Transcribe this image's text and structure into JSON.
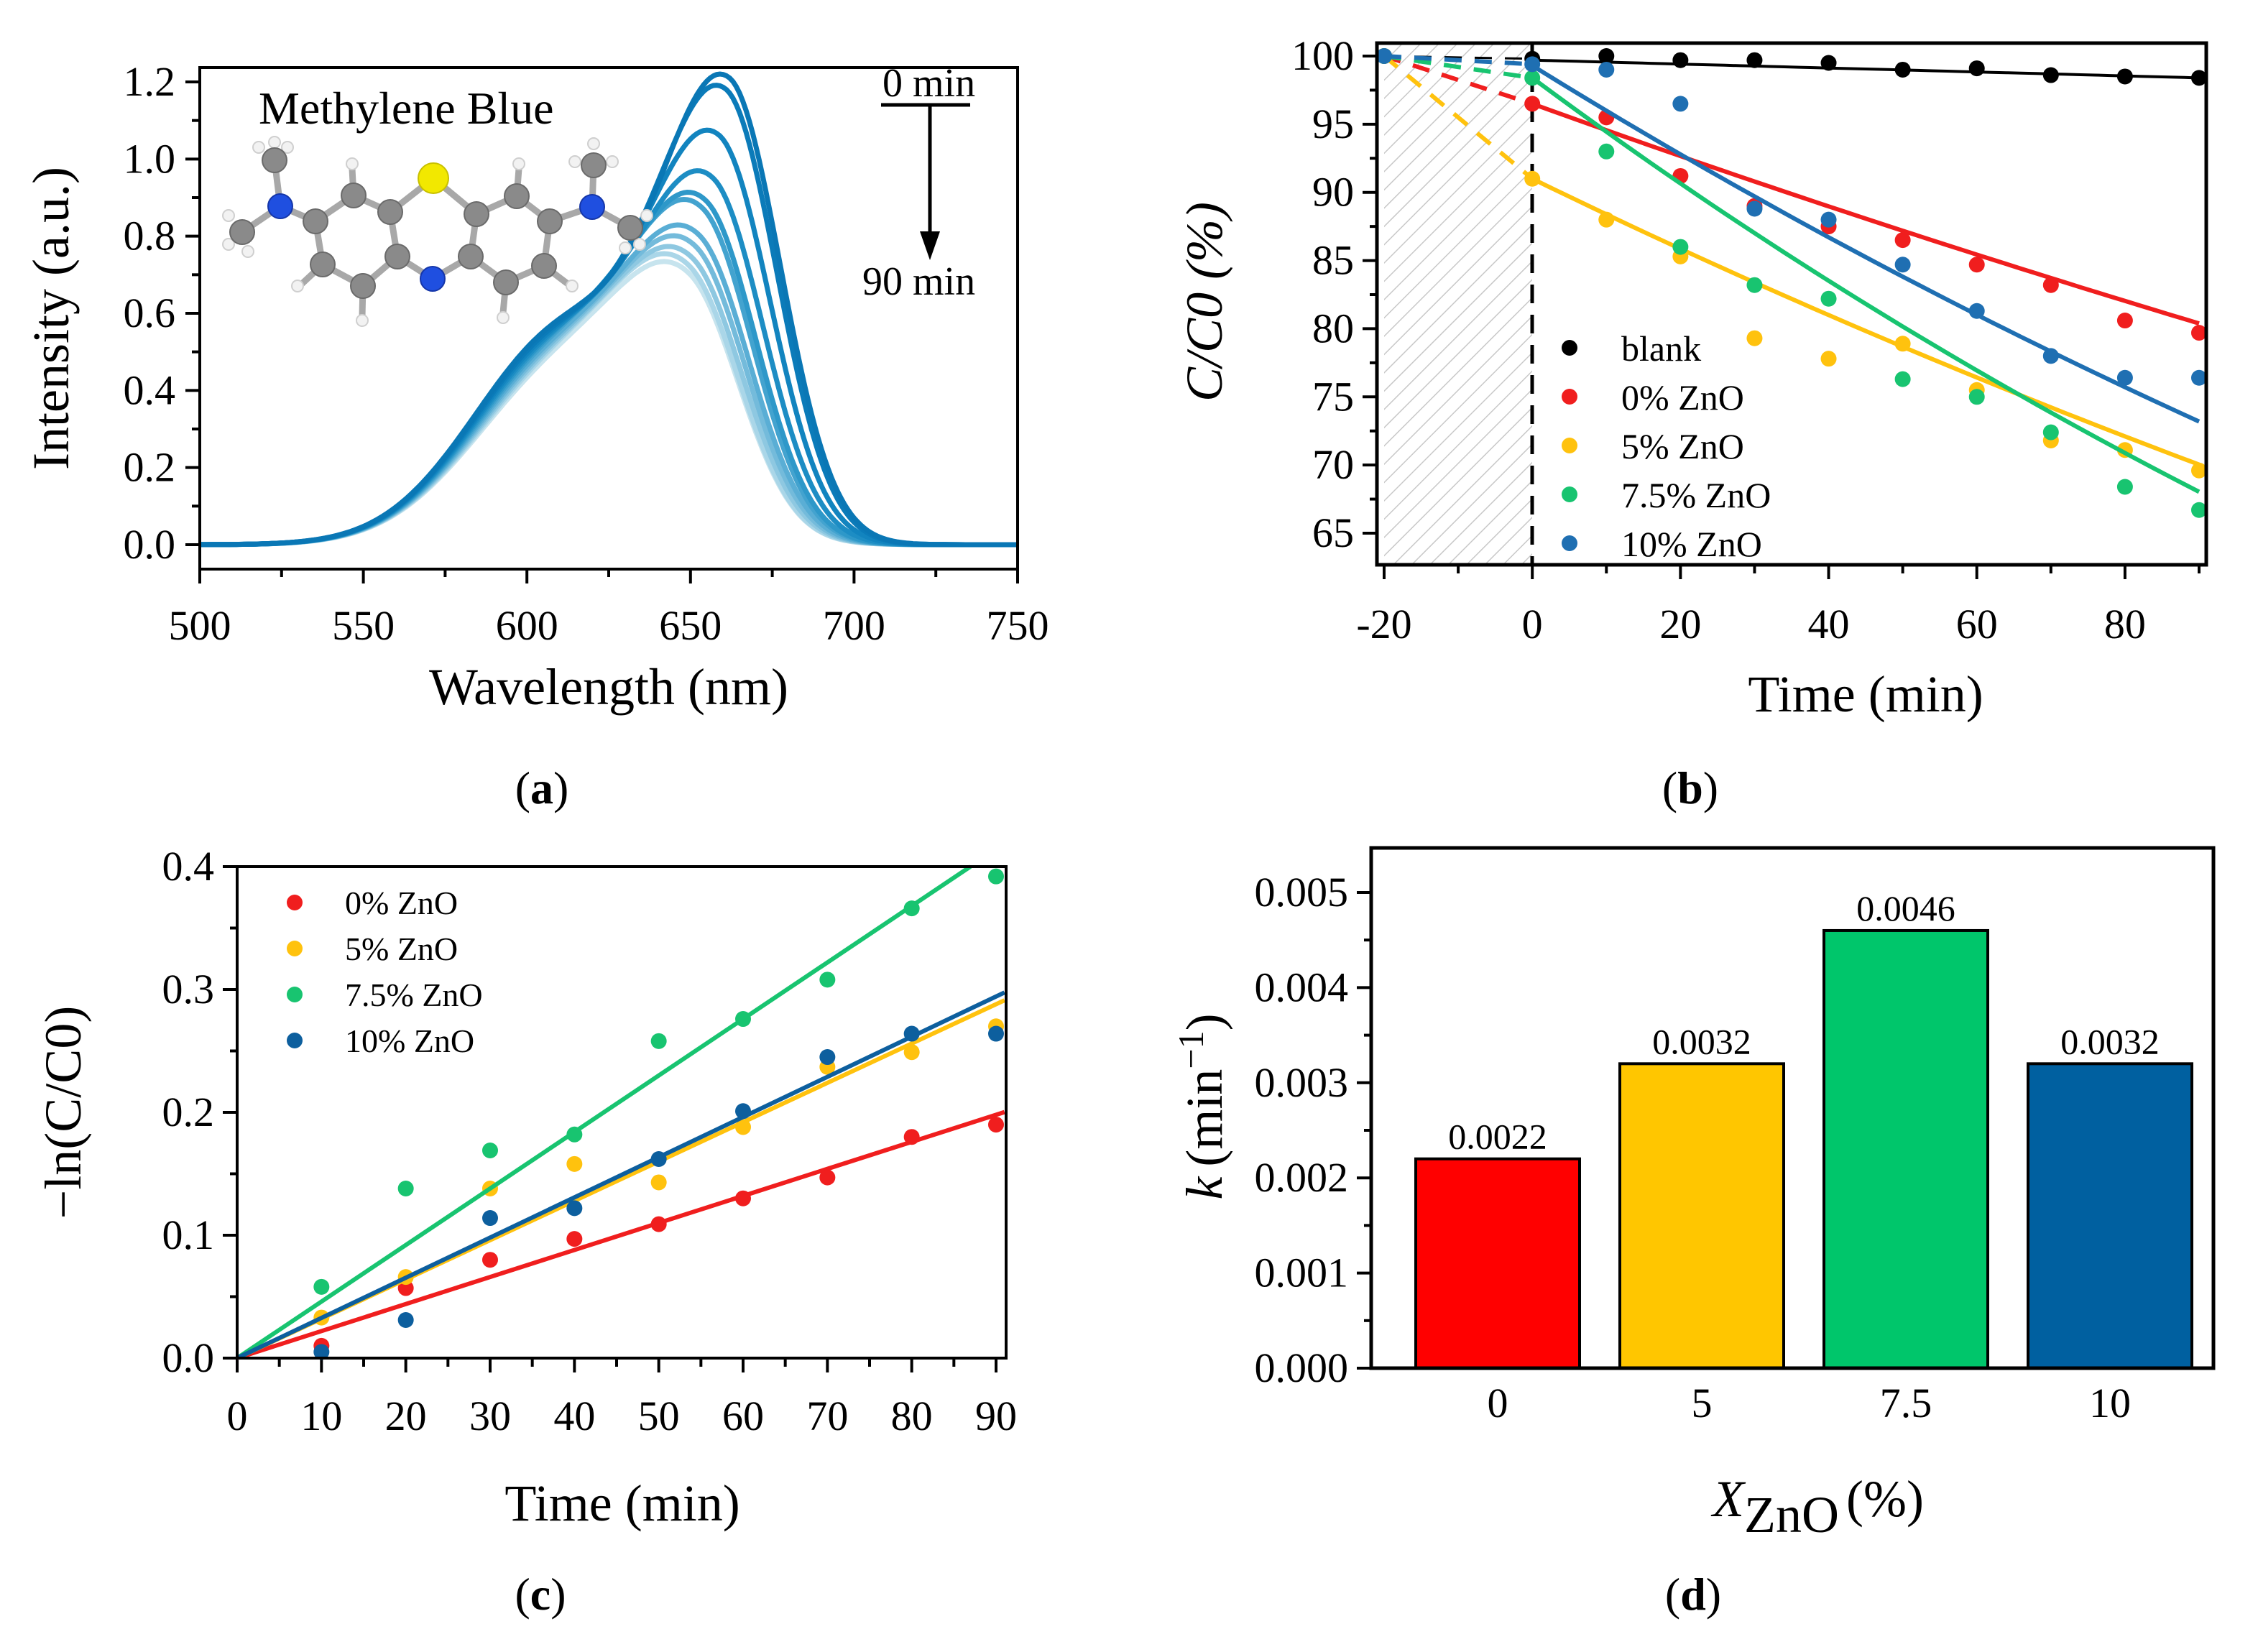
{
  "captions": {
    "a": "a",
    "b": "b",
    "c": "c",
    "d": "d"
  },
  "chart_data": [
    {
      "id": "a",
      "type": "line",
      "title": "",
      "xlabel": "Wavelength (nm)",
      "ylabel": "Intensity (a.u.)",
      "xlim": [
        500,
        750
      ],
      "ylim": [
        0,
        1.25
      ],
      "xticks": [
        "500",
        "550",
        "600",
        "650",
        "700",
        "750"
      ],
      "yticks": [
        "0.0",
        "0.2",
        "0.4",
        "0.6",
        "0.8",
        "1.0",
        "1.2"
      ],
      "annotations": {
        "molecule": "Methylene Blue",
        "start": "0 min",
        "end": "90 min"
      },
      "series": [
        {
          "peak_nm": 662,
          "peak": 1.21,
          "shoulder": 0.55,
          "color": "#0a77b5"
        },
        {
          "peak_nm": 661,
          "peak": 1.18,
          "shoulder": 0.54,
          "color": "#0b7bb9"
        },
        {
          "peak_nm": 659,
          "peak": 1.06,
          "shoulder": 0.53,
          "color": "#1284bf"
        },
        {
          "peak_nm": 657,
          "peak": 0.95,
          "shoulder": 0.52,
          "color": "#1d8dc4"
        },
        {
          "peak_nm": 655,
          "peak": 0.89,
          "shoulder": 0.51,
          "color": "#2e98c9"
        },
        {
          "peak_nm": 654,
          "peak": 0.87,
          "shoulder": 0.5,
          "color": "#43a3cf"
        },
        {
          "peak_nm": 653,
          "peak": 0.8,
          "shoulder": 0.49,
          "color": "#5aaed5"
        },
        {
          "peak_nm": 652,
          "peak": 0.77,
          "shoulder": 0.48,
          "color": "#74bbdb"
        },
        {
          "peak_nm": 651,
          "peak": 0.74,
          "shoulder": 0.47,
          "color": "#8ec8e1"
        },
        {
          "peak_nm": 650,
          "peak": 0.72,
          "shoulder": 0.46,
          "color": "#aad6e8"
        },
        {
          "peak_nm": 650,
          "peak": 0.7,
          "shoulder": 0.45,
          "color": "#c7e4ee"
        }
      ]
    },
    {
      "id": "b",
      "type": "scatter",
      "xlabel": "Time (min)",
      "ylabel": "C/C0 (%)",
      "xlim": [
        -22,
        92
      ],
      "ylim": [
        62.5,
        101
      ],
      "xticks": [
        "-20",
        "0",
        "20",
        "40",
        "60",
        "80"
      ],
      "yticks": [
        "65",
        "70",
        "75",
        "80",
        "85",
        "90",
        "95",
        "100"
      ],
      "legend_position": "bottom-center",
      "x": [
        -20,
        0,
        10,
        20,
        30,
        40,
        50,
        60,
        70,
        80,
        90
      ],
      "series": [
        {
          "name": "blank",
          "color": "#000000",
          "values": [
            100,
            99.8,
            100,
            99.7,
            99.7,
            99.5,
            99.0,
            99.1,
            98.6,
            98.5,
            98.4
          ],
          "fit": {
            "type": "linear",
            "y0": 99.7,
            "y90": 98.4
          }
        },
        {
          "name": "0% ZnO",
          "color": "#f01e1e",
          "values": [
            100,
            96.5,
            95.5,
            91.2,
            89.0,
            87.5,
            86.5,
            84.7,
            83.2,
            80.6,
            79.7
          ],
          "fit": {
            "type": "exp",
            "y0": 96.5,
            "k": 0.00203
          }
        },
        {
          "name": "5% ZnO",
          "color": "#ffc20e",
          "values": [
            100,
            91.0,
            88.0,
            85.3,
            79.3,
            77.8,
            78.9,
            75.5,
            71.8,
            71.1,
            69.6
          ],
          "fit": {
            "type": "exp",
            "y0": 91.0,
            "k": 0.00291
          }
        },
        {
          "name": "7.5% ZnO",
          "color": "#18c470",
          "values": [
            100,
            98.4,
            93.0,
            86.0,
            83.2,
            82.2,
            76.3,
            75.0,
            72.4,
            68.4,
            66.7
          ],
          "fit": {
            "type": "exp",
            "y0": 98.4,
            "k": 0.0041
          }
        },
        {
          "name": "10% ZnO",
          "color": "#1f6fb2",
          "values": [
            100,
            99.4,
            99.0,
            96.5,
            88.8,
            88.0,
            84.7,
            81.3,
            78.0,
            76.4,
            76.4
          ],
          "fit": {
            "type": "exp",
            "y0": 99.3,
            "k": 0.00339
          }
        }
      ]
    },
    {
      "id": "c",
      "type": "scatter",
      "xlabel": "Time (min)",
      "ylabel": "−ln(C/C0)",
      "xlim": [
        0,
        91
      ],
      "ylim": [
        0,
        0.4
      ],
      "xticks": [
        "0",
        "10",
        "20",
        "30",
        "40",
        "50",
        "60",
        "70",
        "80",
        "90"
      ],
      "yticks": [
        "0.0",
        "0.1",
        "0.2",
        "0.3",
        "0.4"
      ],
      "legend_position": "top-left",
      "x": [
        10,
        20,
        30,
        40,
        50,
        60,
        70,
        80,
        90
      ],
      "series": [
        {
          "name": "0% ZnO",
          "color": "#f01e1e",
          "values": [
            0.01,
            0.057,
            0.08,
            0.097,
            0.109,
            0.13,
            0.147,
            0.18,
            0.19
          ],
          "slope": 0.0022
        },
        {
          "name": "5% ZnO",
          "color": "#ffc20e",
          "values": [
            0.033,
            0.066,
            0.138,
            0.158,
            0.143,
            0.188,
            0.237,
            0.249,
            0.27
          ],
          "slope": 0.0032
        },
        {
          "name": "7.5% ZnO",
          "color": "#18c470",
          "values": [
            0.058,
            0.138,
            0.169,
            0.182,
            0.258,
            0.276,
            0.308,
            0.366,
            0.392
          ],
          "slope": 0.0046
        },
        {
          "name": "10% ZnO",
          "color": "#0d5f9e",
          "values": [
            0.005,
            0.031,
            0.114,
            0.122,
            0.162,
            0.201,
            0.245,
            0.264,
            0.264
          ],
          "slope": 0.00327
        }
      ]
    },
    {
      "id": "d",
      "type": "bar",
      "xlabel_main": "X",
      "xlabel_sub": "ZnO",
      "xlabel_unit": "(%)",
      "ylabel_main": "k",
      "ylabel_unit": "(min",
      "ylabel_exp": "−1",
      "ylabel_close": ")",
      "ylim": [
        0,
        0.0055
      ],
      "yticks": [
        "0.000",
        "0.001",
        "0.002",
        "0.003",
        "0.004",
        "0.005"
      ],
      "categories": [
        "0",
        "5",
        "7.5",
        "10"
      ],
      "values": [
        0.0022,
        0.0032,
        0.0046,
        0.0032
      ],
      "labels": [
        "0.0022",
        "0.0032",
        "0.0046",
        "0.0032"
      ],
      "colors": [
        "#ff0000",
        "#ffc600",
        "#00c66b",
        "#0060a0"
      ]
    }
  ]
}
